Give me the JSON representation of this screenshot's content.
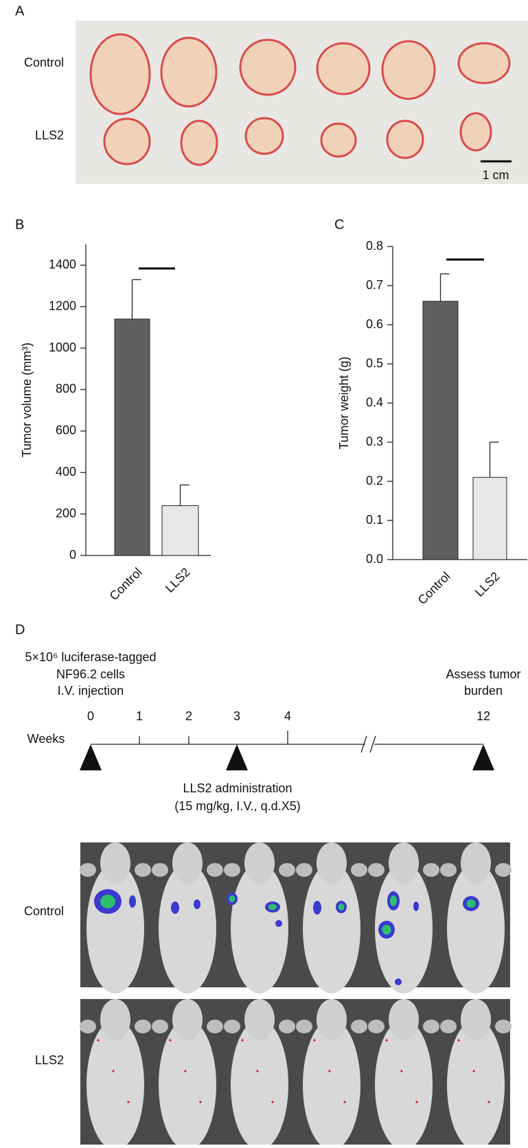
{
  "panel_labels": [
    "A",
    "B",
    "C",
    "D"
  ],
  "photo": {
    "row_labels": [
      "Control",
      "LLS2"
    ],
    "scale_bar": "1 cm"
  },
  "chart_data": [
    {
      "type": "bar",
      "ylabel": "Tumor volume (mm³)",
      "categories": [
        "Control",
        "LLS2"
      ],
      "values": [
        1140,
        240
      ],
      "errors": [
        190,
        100
      ],
      "colors": [
        "#606060",
        "#e8e8e8"
      ],
      "ylim": [
        0,
        1500
      ],
      "yticks": [
        0,
        200,
        400,
        600,
        800,
        1000,
        1200,
        1400
      ]
    },
    {
      "type": "bar",
      "ylabel": "Tumor weight (g)",
      "categories": [
        "Control",
        "LLS2"
      ],
      "values": [
        0.66,
        0.21
      ],
      "errors": [
        0.07,
        0.09
      ],
      "colors": [
        "#606060",
        "#e8e8e8"
      ],
      "ylim": [
        0,
        0.8
      ],
      "yticks": [
        {
          "value": 0,
          "label": "0.0"
        },
        0.1,
        0.2,
        0.3,
        0.4,
        0.5,
        0.6,
        0.7,
        0.8
      ]
    }
  ],
  "timeline": {
    "start_text": [
      "5×10⁶ luciferase-tagged",
      "NF96.2 cells",
      "I.V. injection"
    ],
    "axis_label": "Weeks",
    "weeks": [
      "0",
      "1",
      "2",
      "3",
      "4",
      "12"
    ],
    "end_text": [
      "Assess tumor",
      "burden"
    ],
    "treatment_text": [
      "LLS2 administration",
      "(15 mg/kg, I.V., q.d.X5)"
    ]
  },
  "imaging": {
    "row_labels": [
      "Control",
      "LLS2"
    ]
  }
}
